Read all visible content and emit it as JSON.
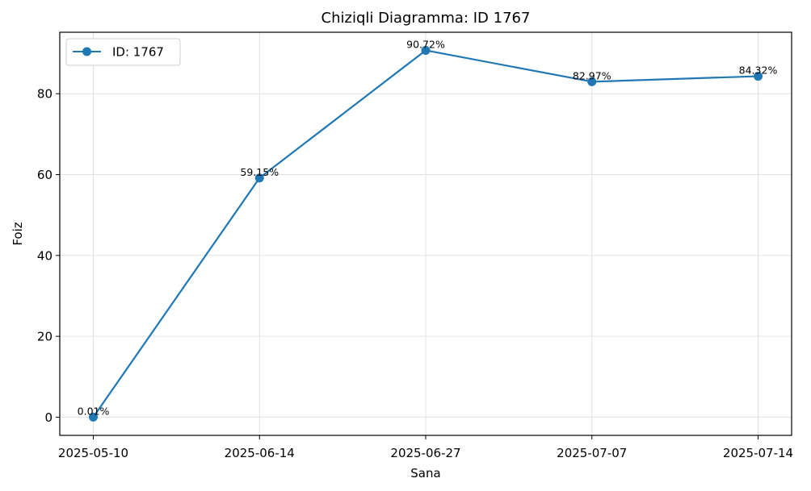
{
  "chart_data": {
    "type": "line",
    "title": "Chiziqli Diagramma: ID 1767",
    "xlabel": "Sana",
    "ylabel": "Foiz",
    "categories": [
      "2025-05-10",
      "2025-06-14",
      "2025-06-27",
      "2025-07-07",
      "2025-07-14"
    ],
    "series": [
      {
        "name": "ID: 1767",
        "values": [
          0.01,
          59.15,
          90.72,
          82.97,
          84.32
        ],
        "labels": [
          "0.01%",
          "59.15%",
          "90.72%",
          "82.97%",
          "84.32%"
        ],
        "color": "#1f77b4"
      }
    ],
    "yticks": [
      0,
      20,
      40,
      60,
      80
    ],
    "ylim": [
      -4.5,
      95.2
    ],
    "grid": true,
    "legend_position": "top-left"
  }
}
